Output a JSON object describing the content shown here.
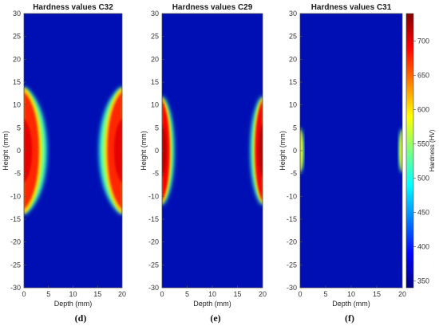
{
  "chart_data": [
    {
      "type": "heatmap",
      "title": "Hardness values C32",
      "xlabel": "Depth (mm)",
      "ylabel": "Height (mm)",
      "xlim": [
        0,
        20
      ],
      "ylim": [
        -30,
        30
      ],
      "xticks": [
        0,
        5,
        10,
        15,
        20
      ],
      "yticks": [
        -30,
        -25,
        -20,
        -15,
        -10,
        -5,
        0,
        5,
        10,
        15,
        20,
        25,
        30
      ],
      "panel_label": "(d)",
      "hot_zones": [
        {
          "edge": "left",
          "peak_depth_mm": 3.0,
          "height_extent_mm": [
            -14,
            14
          ],
          "max_hv": 700
        },
        {
          "edge": "right",
          "peak_depth_mm": 3.0,
          "height_extent_mm": [
            -14,
            14
          ],
          "max_hv": 700
        }
      ],
      "background_hv": 350
    },
    {
      "type": "heatmap",
      "title": "Hardness values C29",
      "xlabel": "Depth (mm)",
      "ylabel": "Height (mm)",
      "xlim": [
        0,
        20
      ],
      "ylim": [
        -30,
        30
      ],
      "xticks": [
        0,
        5,
        10,
        15,
        20
      ],
      "yticks": [
        -30,
        -25,
        -20,
        -15,
        -10,
        -5,
        0,
        5,
        10,
        15,
        20,
        25,
        30
      ],
      "panel_label": "(e)",
      "hot_zones": [
        {
          "edge": "left",
          "peak_depth_mm": 1.5,
          "height_extent_mm": [
            -12,
            12
          ],
          "max_hv": 720
        },
        {
          "edge": "right",
          "peak_depth_mm": 1.5,
          "height_extent_mm": [
            -12,
            12
          ],
          "max_hv": 720
        }
      ],
      "background_hv": 350
    },
    {
      "type": "heatmap",
      "title": "Hardness values C31",
      "xlabel": "Depth (mm)",
      "ylabel": "Height (mm)",
      "xlim": [
        0,
        20
      ],
      "ylim": [
        -30,
        30
      ],
      "xticks": [
        0,
        5,
        10,
        15,
        20
      ],
      "yticks": [
        -30,
        -25,
        -20,
        -15,
        -10,
        -5,
        0,
        5,
        10,
        15,
        20,
        25,
        30
      ],
      "panel_label": "(f)",
      "hot_zones": [
        {
          "edge": "left",
          "peak_depth_mm": 0.4,
          "height_extent_mm": [
            -5,
            5
          ],
          "max_hv": 580
        },
        {
          "edge": "right",
          "peak_depth_mm": 0.4,
          "height_extent_mm": [
            -5,
            5
          ],
          "max_hv": 580
        }
      ],
      "background_hv": 350
    }
  ],
  "colorbar": {
    "label": "Hardness (HV)",
    "min": 340,
    "max": 740,
    "ticks": [
      350,
      400,
      450,
      500,
      550,
      600,
      650,
      700
    ],
    "colormap": "jet",
    "colors": {
      "low": "#000080",
      "mid_low": "#0000ff",
      "mid": "#00ffff",
      "mid_high": "#ffff00",
      "high": "#ff0000",
      "top": "#800000"
    }
  },
  "colors": {
    "background_field": "#000fb4"
  }
}
